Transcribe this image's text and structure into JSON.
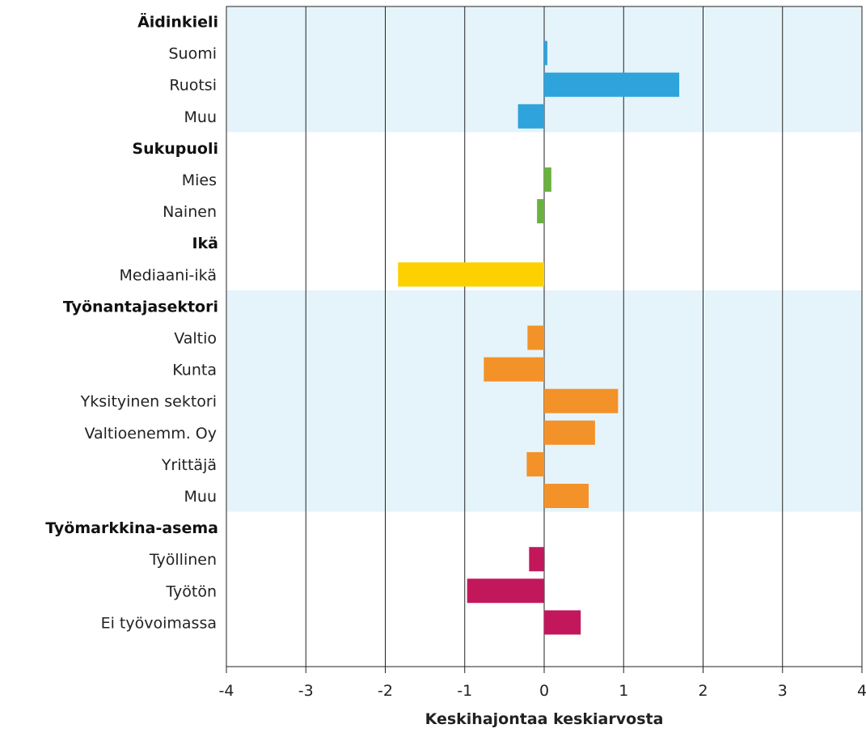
{
  "chart_data": {
    "type": "bar",
    "orientation": "horizontal",
    "xlabel": "Keskihajontaa keskiarvosta",
    "xlim": [
      -4,
      4
    ],
    "xticks": [
      "-4",
      "-3",
      "-2",
      "-1",
      "0",
      "1",
      "2",
      "3",
      "4"
    ],
    "grid": true,
    "groups": [
      {
        "name": "Äidinkieli",
        "color": "#2ea3dc",
        "shaded": true,
        "categories": [
          "Suomi",
          "Ruotsi",
          "Muu"
        ],
        "values": [
          0.04,
          1.7,
          -0.33
        ]
      },
      {
        "name": "Sukupuoli",
        "color": "#6ab23e",
        "shaded": false,
        "categories": [
          "Mies",
          "Nainen"
        ],
        "values": [
          0.09,
          -0.09
        ]
      },
      {
        "name": "Ikä",
        "color": "#fdd000",
        "shaded": false,
        "categories": [
          "Mediaani-ikä"
        ],
        "values": [
          -1.84
        ]
      },
      {
        "name": "Työnantajasektori",
        "color": "#f39229",
        "shaded": true,
        "categories": [
          "Valtio",
          "Kunta",
          "Yksityinen sektori",
          "Valtioenemm. Oy",
          "Yrittäjä",
          "Muu"
        ],
        "values": [
          -0.21,
          -0.76,
          0.93,
          0.64,
          -0.22,
          0.56
        ]
      },
      {
        "name": "Työmarkkina-asema",
        "color": "#c2185b",
        "shaded": false,
        "categories": [
          "Työllinen",
          "Työtön",
          "Ei työvoimassa"
        ],
        "values": [
          -0.19,
          -0.97,
          0.46
        ]
      }
    ],
    "shade_color": "#e5f4fb"
  }
}
